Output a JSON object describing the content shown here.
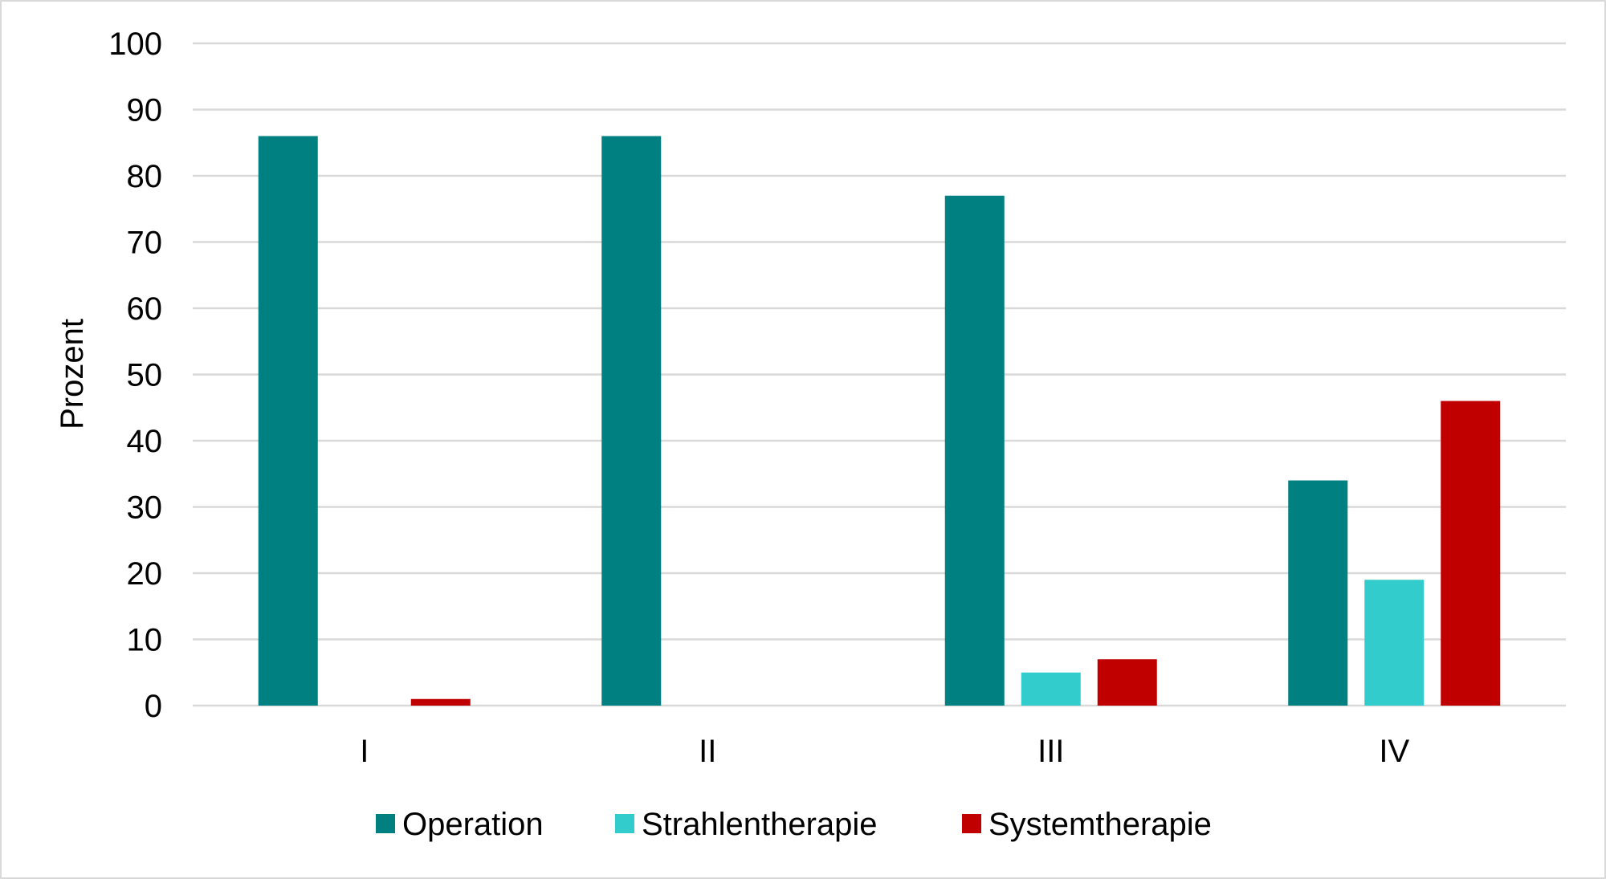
{
  "chart_data": {
    "type": "bar",
    "categories": [
      "I",
      "II",
      "III",
      "IV"
    ],
    "series": [
      {
        "name": "Operation",
        "values": [
          86,
          86,
          77,
          34
        ],
        "color": "#008080"
      },
      {
        "name": "Strahlentherapie",
        "values": [
          0,
          0,
          5,
          19
        ],
        "color": "#33cccc"
      },
      {
        "name": "Systemtherapie",
        "values": [
          1,
          0,
          7,
          46
        ],
        "color": "#c00000"
      }
    ],
    "title": "",
    "xlabel": "",
    "ylabel": "Prozent",
    "ylim": [
      0,
      100
    ],
    "yticks": [
      0,
      10,
      20,
      30,
      40,
      50,
      60,
      70,
      80,
      90,
      100
    ],
    "grid": true,
    "legend_position": "bottom"
  }
}
